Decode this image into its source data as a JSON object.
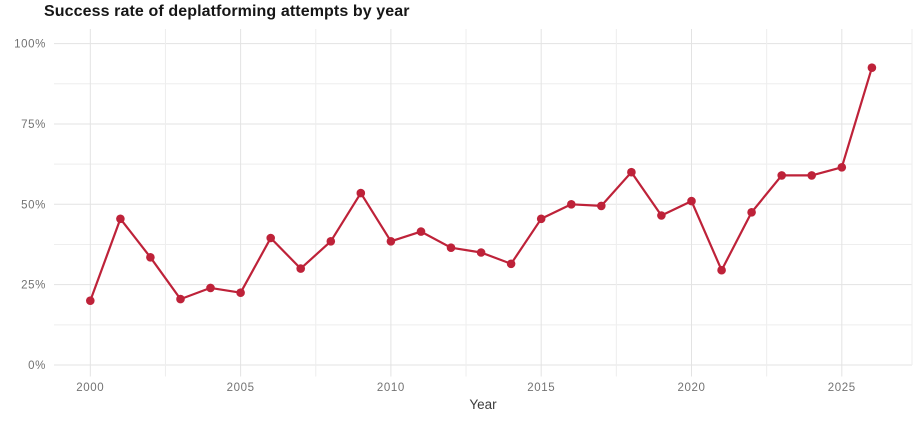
{
  "chart_data": {
    "type": "line",
    "title": "Success rate of deplatforming attempts by year",
    "xlabel": "Year",
    "ylabel": "",
    "series": [
      {
        "name": "Success rate",
        "x": [
          2000,
          2001,
          2002,
          2003,
          2004,
          2005,
          2006,
          2007,
          2008,
          2009,
          2010,
          2011,
          2012,
          2013,
          2014,
          2015,
          2016,
          2017,
          2018,
          2019,
          2020,
          2021,
          2022,
          2023,
          2024,
          2025,
          2026
        ],
        "values": [
          20,
          45.5,
          33.5,
          20.5,
          24,
          22.5,
          39.5,
          30,
          38.5,
          53.5,
          38.5,
          41.5,
          36.5,
          35,
          31.5,
          45.5,
          50,
          49.5,
          60,
          46.5,
          51,
          29.5,
          47.5,
          59,
          59,
          61.5,
          92.5
        ]
      }
    ],
    "unit": "%",
    "ylim": [
      0,
      100
    ],
    "xlim": [
      1998.8,
      2027.3
    ],
    "y_ticks": [
      {
        "value": 0,
        "label": "0%"
      },
      {
        "value": 25,
        "label": "25%"
      },
      {
        "value": 50,
        "label": "50%"
      },
      {
        "value": 75,
        "label": "75%"
      },
      {
        "value": 100,
        "label": "100%"
      }
    ],
    "x_ticks": [
      {
        "value": 2000,
        "label": "2000"
      },
      {
        "value": 2005,
        "label": "2005"
      },
      {
        "value": 2010,
        "label": "2010"
      },
      {
        "value": 2015,
        "label": "2015"
      },
      {
        "value": 2020,
        "label": "2020"
      },
      {
        "value": 2025,
        "label": "2025"
      }
    ],
    "grid": true,
    "y_gridline_step": 12.5,
    "x_gridline_step": 2.5,
    "legend": "none",
    "marker": "circle",
    "colors": {
      "line": "#be2239",
      "marker": "#be2239",
      "grid_major": "#e3e3e3",
      "grid_minor": "#eeeeee",
      "tick_label": "#737373",
      "axis_title": "#3d3d3d",
      "title": "#161616",
      "background": "#ffffff"
    }
  }
}
